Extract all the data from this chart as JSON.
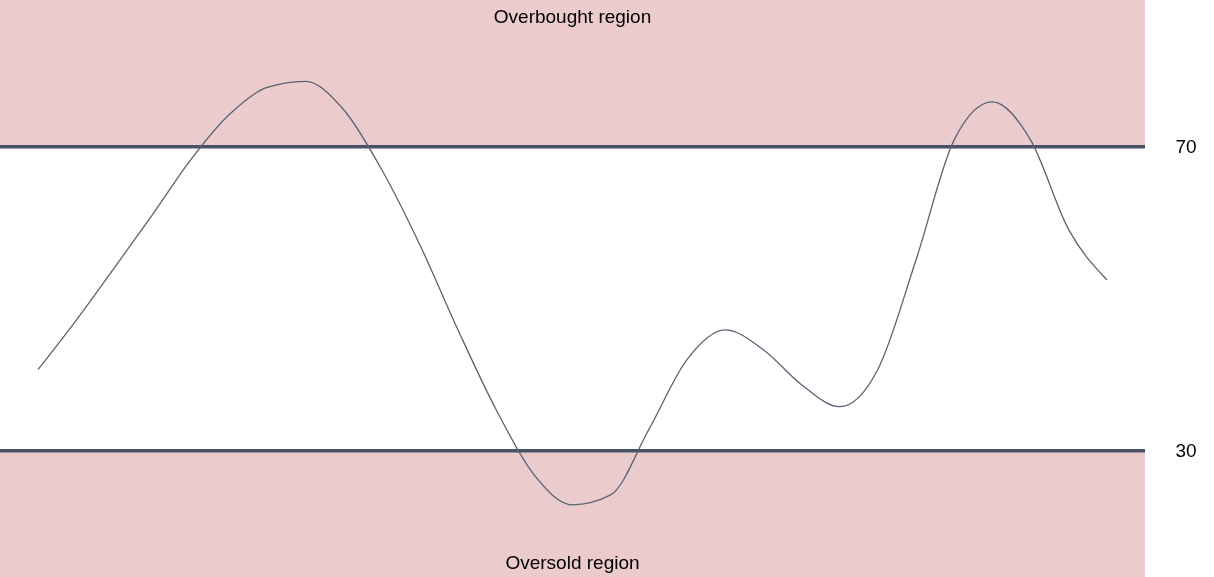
{
  "chart_data": {
    "type": "line",
    "categories": [
      null,
      null,
      null,
      null,
      null,
      null,
      null,
      null,
      null,
      null,
      null,
      null,
      null,
      null,
      null,
      null,
      null,
      null,
      null,
      null,
      null,
      null,
      null,
      null,
      null,
      null,
      null,
      null,
      null
    ],
    "series": [
      {
        "color": "#5a6275",
        "values": [
          40.7,
          47.2,
          54.1,
          61.1,
          68.3,
          74.2,
          77.8,
          78.6,
          74.9,
          67.0,
          57.1,
          45.9,
          35.4,
          26.8,
          22.9,
          24.2,
          32.8,
          42.0,
          45.9,
          43.3,
          38.7,
          35.8,
          40.7,
          55.1,
          70.9,
          75.9,
          70.9,
          59.1,
          52.5
        ]
      }
    ],
    "ylim": [
      13.4,
      89.3
    ],
    "yticks": [
      30,
      70
    ],
    "ref_lines": [
      {
        "axis": "y",
        "value": 70,
        "color": "#4a5266"
      },
      {
        "axis": "y",
        "value": 30,
        "color": "#4a5266"
      }
    ],
    "bands": [
      {
        "axis": "y",
        "from": 70,
        "to": 89.3,
        "label": "Overbought region",
        "color": "#ebcbcc"
      },
      {
        "axis": "y",
        "from": 13.4,
        "to": 30,
        "label": "Oversold region",
        "color": "#ebcbcc"
      }
    ]
  }
}
